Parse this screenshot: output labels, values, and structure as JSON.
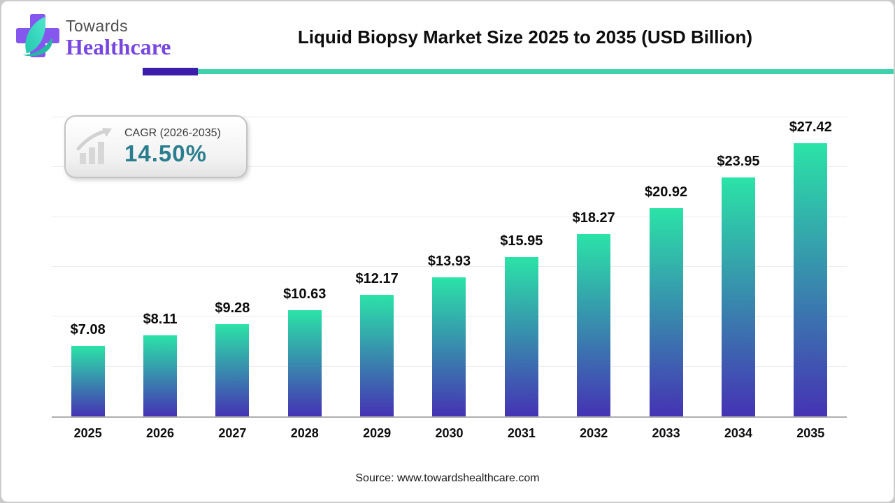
{
  "header": {
    "logo": {
      "brand_top": "Towards",
      "brand_bottom": "Healthcare",
      "cross_color": "#8657ee",
      "leaf_color": "#3fdcc0"
    },
    "title": "Liquid Biopsy Market Size 2025 to 2035 (USD Billion)"
  },
  "divider": {
    "accent_color": "#3a1da8",
    "line_color": "#3fd1ac"
  },
  "cagr_badge": {
    "label": "CAGR (2026-2035)",
    "value": "14.50%",
    "value_color": "#2b7e8e",
    "icon": "growth-chart-icon",
    "icon_color": "#d7d7d7"
  },
  "chart_data": {
    "type": "bar",
    "title": "Liquid Biopsy Market Size 2025 to 2035 (USD Billion)",
    "categories": [
      "2025",
      "2026",
      "2027",
      "2028",
      "2029",
      "2030",
      "2031",
      "2032",
      "2033",
      "2034",
      "2035"
    ],
    "values": [
      7.08,
      8.11,
      9.28,
      10.63,
      12.17,
      13.93,
      15.95,
      18.27,
      20.92,
      23.95,
      27.42
    ],
    "labels": [
      "$7.08",
      "$8.11",
      "$9.28",
      "$10.63",
      "$12.17",
      "$13.93",
      "$15.95",
      "$18.27",
      "$20.92",
      "$23.95",
      "$27.42"
    ],
    "xlabel": "",
    "ylabel": "",
    "unit": "USD Billion",
    "ylim": [
      0,
      30
    ],
    "gridline_step": 5,
    "grid": true,
    "legend": false,
    "bar_gradient_top": "#2be3a7",
    "bar_gradient_bottom": "#4533b4"
  },
  "footer": {
    "source": "Source: www.towardshealthcare.com"
  }
}
